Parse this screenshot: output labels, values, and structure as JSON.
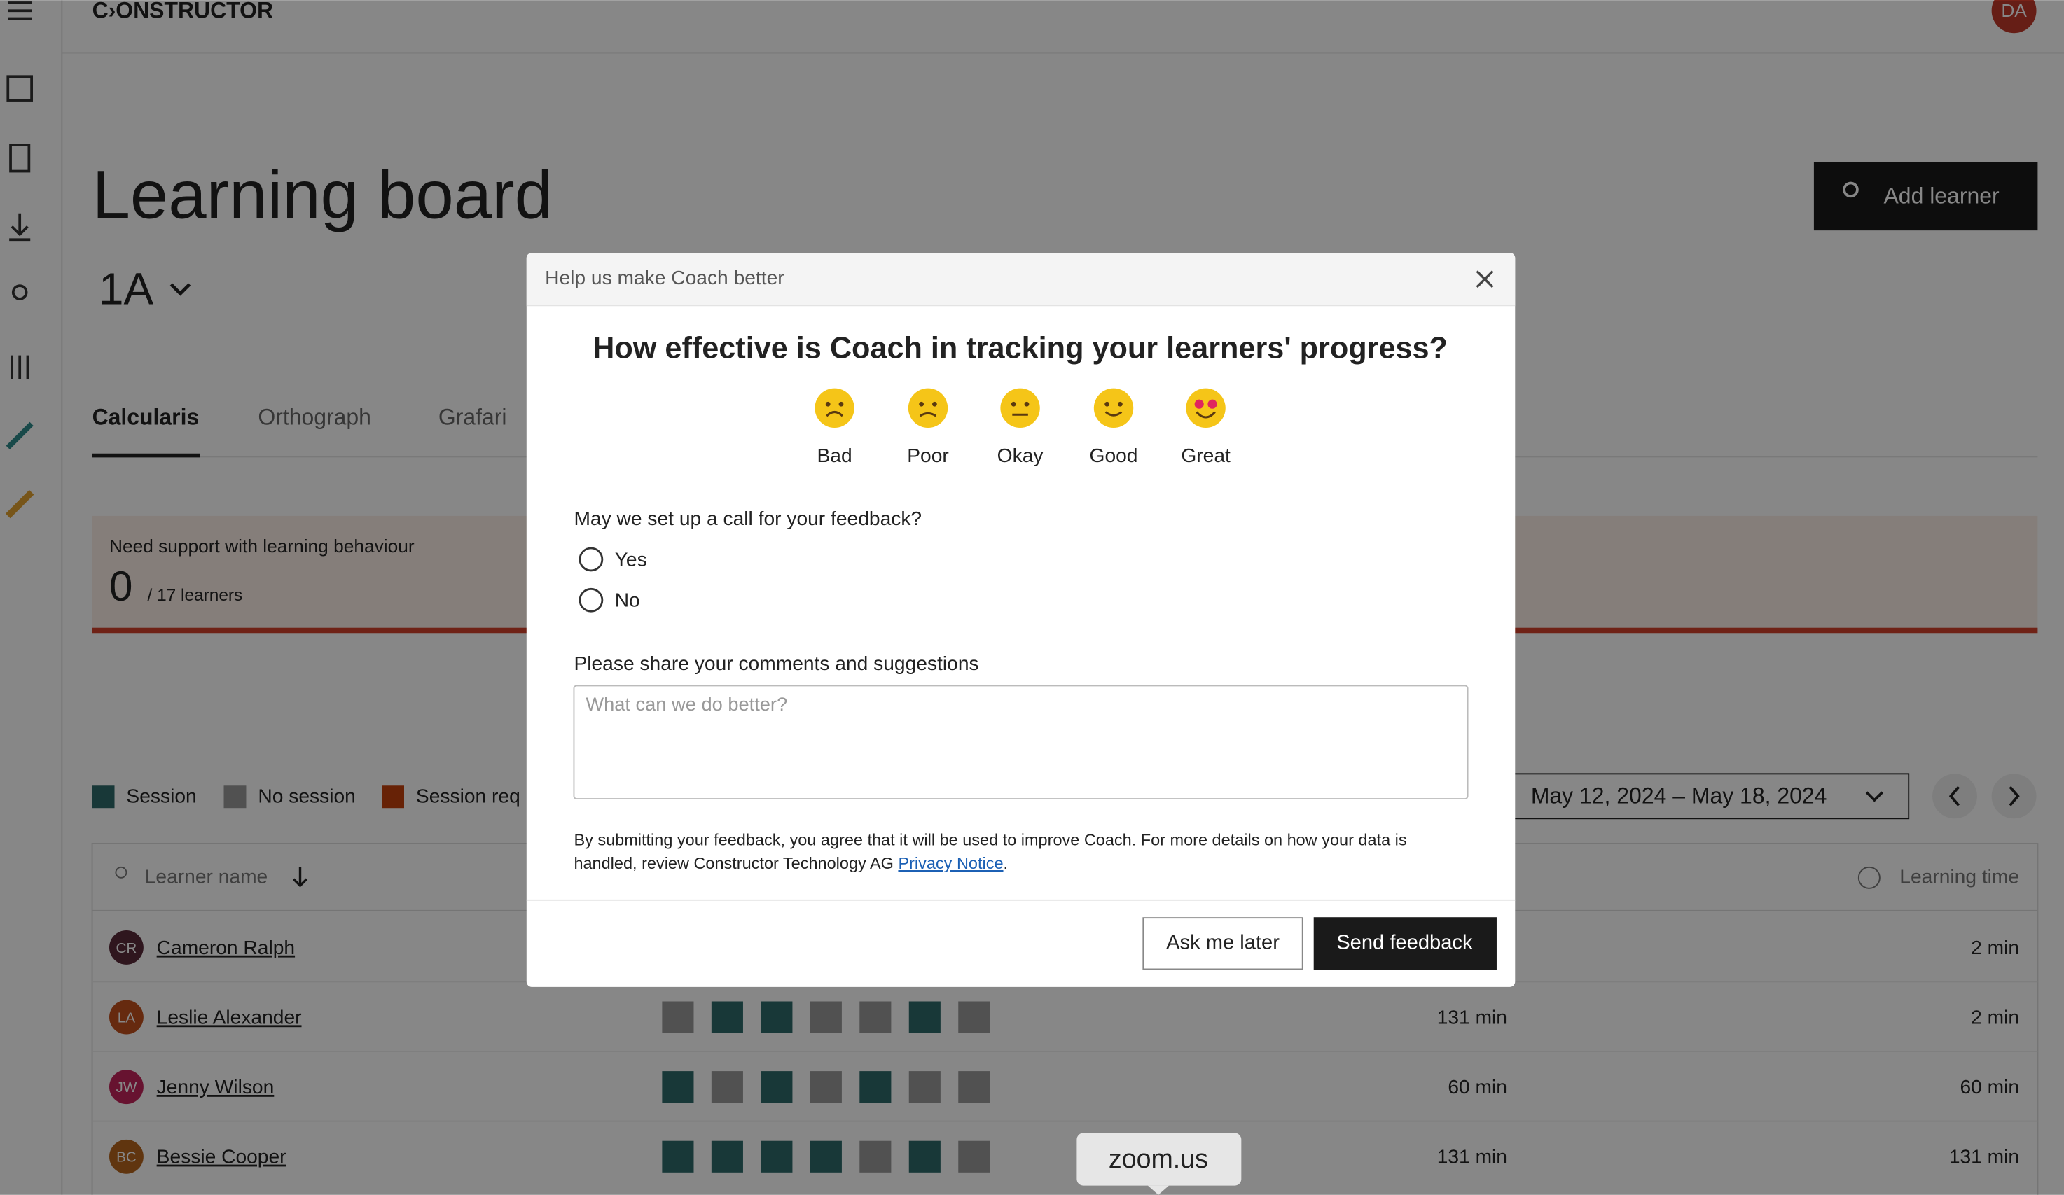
{
  "header": {
    "logo": "C›ONSTRUCTOR",
    "avatar": "DA"
  },
  "page": {
    "title": "Learning board",
    "class_name": "1A",
    "add_button": "Add learner"
  },
  "tabs": [
    "Calcularis",
    "Orthograph",
    "Grafari"
  ],
  "support_card": {
    "label": "Need support with learning behaviour",
    "count": "0",
    "total": "/ 17 learners"
  },
  "legend": [
    "Session",
    "No session",
    "Session req"
  ],
  "date_range": "May 12, 2024 – May 18, 2024",
  "table": {
    "columns": [
      "Learner name",
      "Learning time"
    ],
    "rows": [
      {
        "initials": "CR",
        "name": "Cameron Ralph",
        "learning_time": "2 min"
      },
      {
        "initials": "LA",
        "name": "Leslie Alexander",
        "sessions": [
          false,
          true,
          true,
          false,
          false,
          true,
          false
        ],
        "week_time": "131 min",
        "learning_time": "2 min"
      },
      {
        "initials": "JW",
        "name": "Jenny Wilson",
        "sessions": [
          true,
          false,
          true,
          false,
          true,
          false,
          false
        ],
        "week_time": "60 min",
        "learning_time": "60 min"
      },
      {
        "initials": "BC",
        "name": "Bessie Cooper",
        "sessions": [
          true,
          true,
          true,
          true,
          false,
          true,
          false
        ],
        "week_time": "131 min",
        "learning_time": "131 min"
      }
    ]
  },
  "modal": {
    "header": "Help us make Coach better",
    "question": "How effective is Coach in tracking your learners' progress?",
    "ratings": [
      "Bad",
      "Poor",
      "Okay",
      "Good",
      "Great"
    ],
    "call_question": "May we set up a call for your feedback?",
    "call_options": [
      "Yes",
      "No"
    ],
    "comments_label": "Please share your comments and suggestions",
    "comments_placeholder": "What can we do better?",
    "disclaimer": [
      "By submitting your feedback, you agree that it will be used to improve Coach. For more details on how your data is",
      "handled, review Constructor Technology AG"
    ],
    "privacy_link": "Privacy Notice",
    "disclaimer_end": ".",
    "buttons": [
      "Ask me later",
      "Send feedback"
    ]
  },
  "tooltip": "zoom.us"
}
